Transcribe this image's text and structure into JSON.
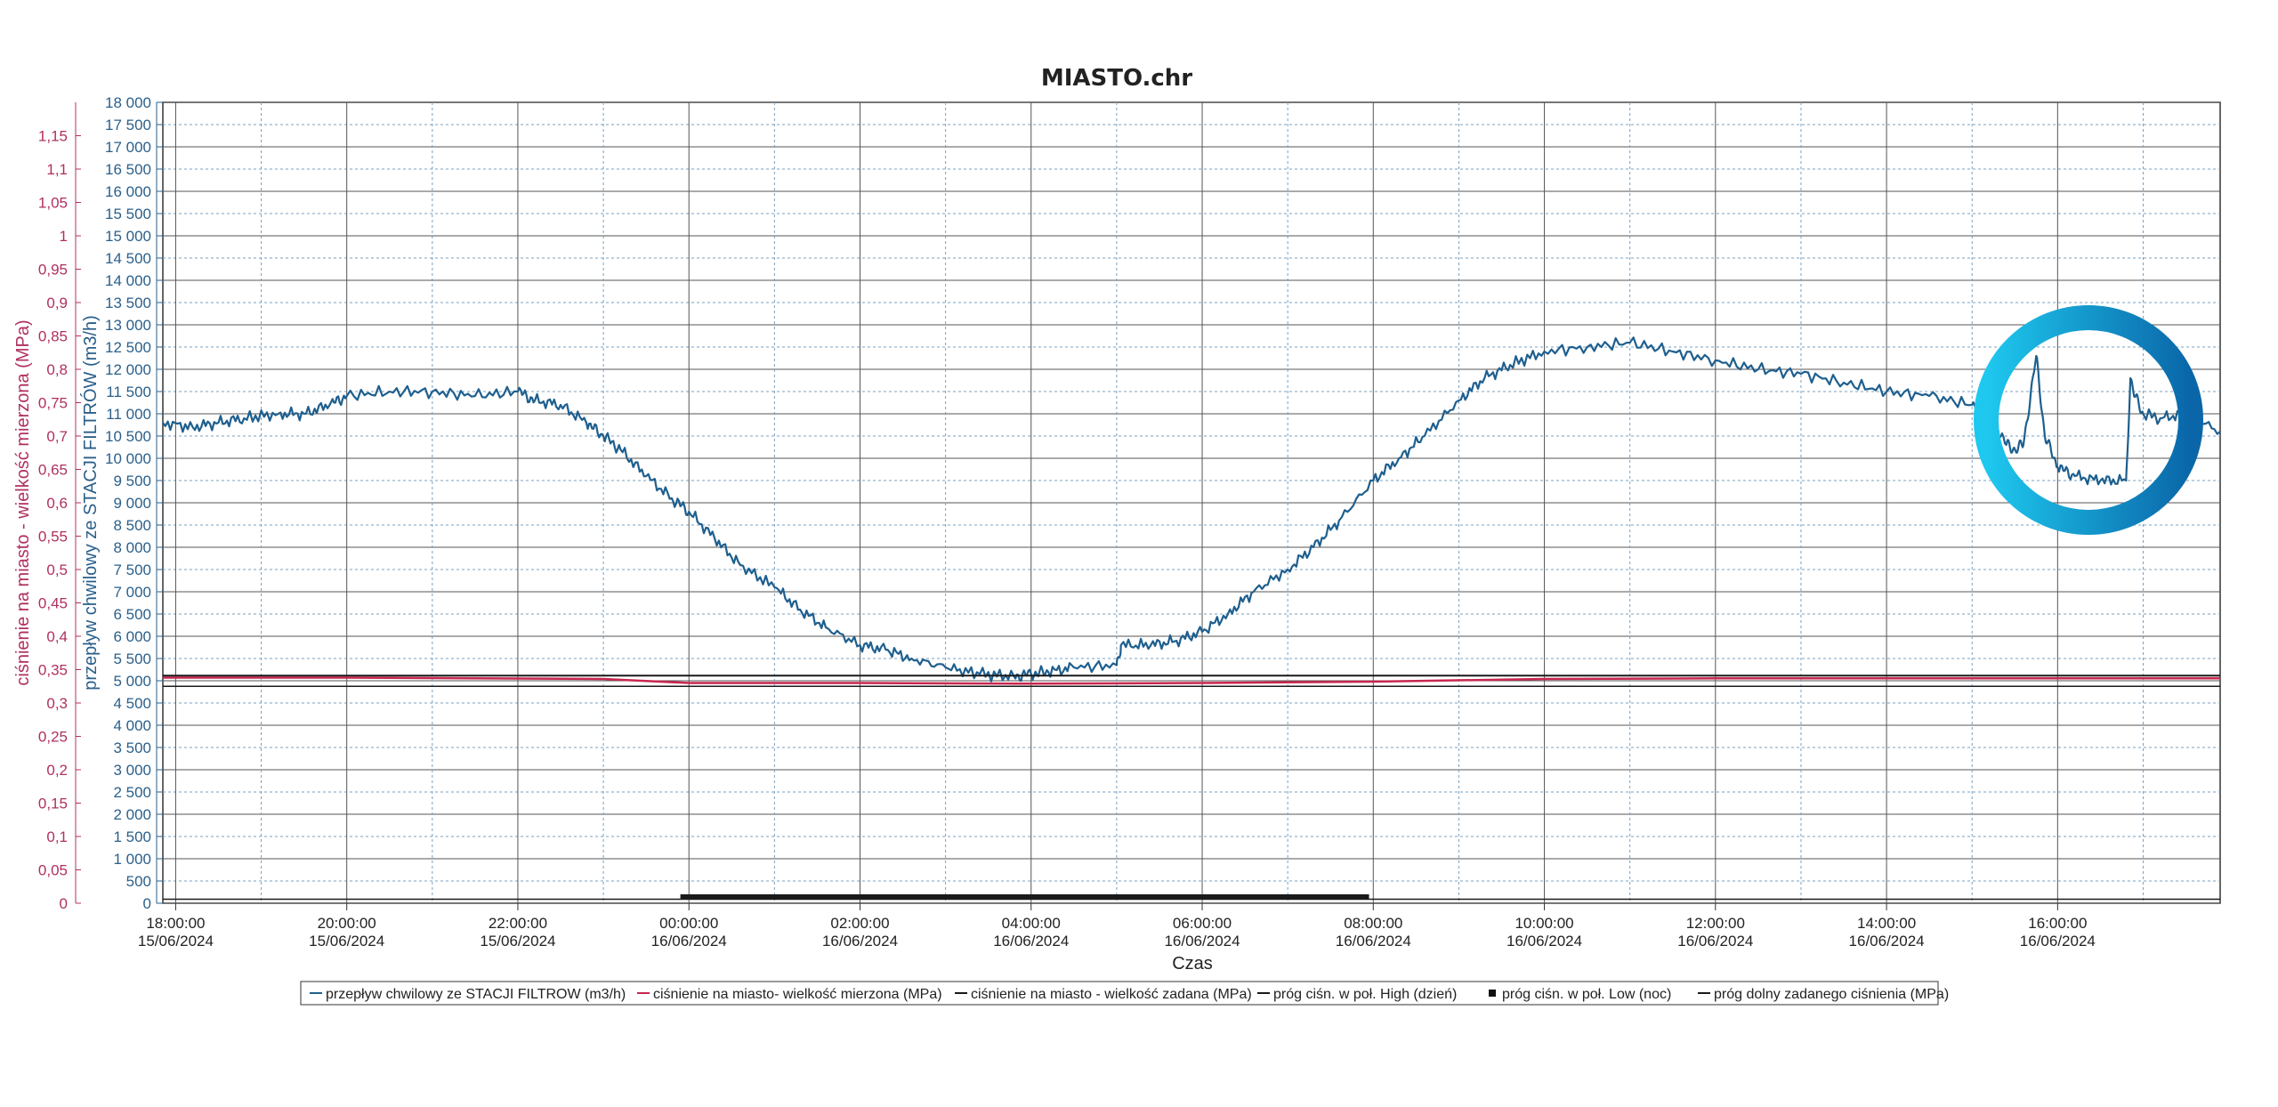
{
  "colors": {
    "flow": "#1e5f8e",
    "pressure_measured": "#c8274f",
    "pressure_set": "#1a1a1a",
    "threshold": "#1a1a1a",
    "grid_major": "#555555",
    "grid_minor": "#7aa0c0",
    "highlight_ring_outer": "#0a66a8",
    "highlight_ring_inner": "#1ec8ef"
  },
  "chart_data": {
    "type": "line",
    "title": "MIASTO.chr",
    "xlabel": "Czas",
    "ylabel_left": "ciśnienie na miasto - wielkość mierzona (MPa)",
    "ylabel_right": "przepływ chwilowy ze STACJI FILTRÓW (m3/h)",
    "xlim_hours": [
      -6.15,
      17.9
    ],
    "ylim_left": [
      0,
      1.2
    ],
    "ylim_right": [
      0,
      18000
    ],
    "x_ticks": [
      {
        "time": "18:00:00",
        "date": "15/06/2024",
        "h": -6
      },
      {
        "time": "20:00:00",
        "date": "15/06/2024",
        "h": -4
      },
      {
        "time": "22:00:00",
        "date": "15/06/2024",
        "h": -2
      },
      {
        "time": "00:00:00",
        "date": "16/06/2024",
        "h": 0
      },
      {
        "time": "02:00:00",
        "date": "16/06/2024",
        "h": 2
      },
      {
        "time": "04:00:00",
        "date": "16/06/2024",
        "h": 4
      },
      {
        "time": "06:00:00",
        "date": "16/06/2024",
        "h": 6
      },
      {
        "time": "08:00:00",
        "date": "16/06/2024",
        "h": 8
      },
      {
        "time": "10:00:00",
        "date": "16/06/2024",
        "h": 10
      },
      {
        "time": "12:00:00",
        "date": "16/06/2024",
        "h": 12
      },
      {
        "time": "14:00:00",
        "date": "16/06/2024",
        "h": 14
      },
      {
        "time": "16:00:00",
        "date": "16/06/2024",
        "h": 16
      }
    ],
    "y_ticks_left": [
      "0",
      "0,05",
      "0,1",
      "0,15",
      "0,2",
      "0,25",
      "0,3",
      "0,35",
      "0,4",
      "0,45",
      "0,5",
      "0,55",
      "0,6",
      "0,65",
      "0,7",
      "0,75",
      "0,8",
      "0,85",
      "0,9",
      "0,95",
      "1",
      "1,05",
      "1,1",
      "1,15"
    ],
    "y_ticks_right": [
      "0",
      "500",
      "1 000",
      "1 500",
      "2 000",
      "2 500",
      "3 000",
      "3 500",
      "4 000",
      "4 500",
      "5 000",
      "5 500",
      "6 000",
      "6 500",
      "7 000",
      "7 500",
      "8 000",
      "8 500",
      "9 000",
      "9 500",
      "10 000",
      "10 500",
      "11 000",
      "11 500",
      "12 000",
      "12 500",
      "13 000",
      "13 500",
      "14 000",
      "14 500",
      "15 000",
      "15 500",
      "16 000",
      "16 500",
      "17 000",
      "17 500",
      "18 000"
    ],
    "series": [
      {
        "name": "przepływ chwilowy ze STACJI FILTROW (m3/h)",
        "axis": "right",
        "x_hours": [
          -6.15,
          -5.8,
          -5.5,
          -5.2,
          -4.8,
          -4.5,
          -4.2,
          -4.0,
          -3.5,
          -3.0,
          -2.5,
          -2.0,
          -1.8,
          -1.5,
          -1.2,
          -1.0,
          -0.8,
          -0.5,
          -0.2,
          0.0,
          0.3,
          0.6,
          1.0,
          1.3,
          1.6,
          2.0,
          2.3,
          2.6,
          3.0,
          3.4,
          3.8,
          4.0,
          4.2,
          4.5,
          5.0,
          5.05,
          5.4,
          5.7,
          6.0,
          6.3,
          6.6,
          7.0,
          7.3,
          7.6,
          8.0,
          8.3,
          8.6,
          9.0,
          9.3,
          9.6,
          10.0,
          10.5,
          11.0,
          11.5,
          12.0,
          12.5,
          13.0,
          13.5,
          14.0,
          14.5,
          15.0,
          15.2,
          15.4,
          15.5,
          15.6,
          15.75,
          15.85,
          16.0,
          16.2,
          16.5,
          16.8,
          16.85,
          16.9,
          17.0,
          17.2,
          17.5,
          17.9
        ],
        "values": [
          10800,
          10700,
          10800,
          10900,
          11000,
          11000,
          11200,
          11400,
          11500,
          11500,
          11400,
          11500,
          11300,
          11200,
          10800,
          10500,
          10200,
          9600,
          9100,
          8800,
          8200,
          7600,
          7100,
          6600,
          6200,
          5800,
          5700,
          5500,
          5300,
          5150,
          5100,
          5150,
          5200,
          5300,
          5350,
          5800,
          5800,
          5900,
          6100,
          6500,
          7000,
          7500,
          8000,
          8600,
          9500,
          10000,
          10500,
          11300,
          11800,
          12100,
          12400,
          12500,
          12600,
          12400,
          12200,
          12000,
          11900,
          11700,
          11500,
          11400,
          11200,
          11100,
          10300,
          10200,
          10300,
          12300,
          10500,
          9800,
          9600,
          9500,
          9500,
          11800,
          11400,
          11000,
          10900,
          11000,
          10600
        ]
      },
      {
        "name": "ciśnienie na miasto- wielkość mierzona (MPa)",
        "axis": "left",
        "x_hours": [
          -6.15,
          -4,
          -1,
          0,
          2,
          4,
          6,
          8,
          10,
          12,
          14,
          16,
          17.9
        ],
        "values": [
          0.338,
          0.338,
          0.336,
          0.33,
          0.33,
          0.329,
          0.33,
          0.332,
          0.336,
          0.337,
          0.337,
          0.337,
          0.337
        ]
      },
      {
        "name": "ciśnienie na miasto - wielkość zadana (MPa)",
        "axis": "left",
        "x_hours": [
          -6.15,
          17.9
        ],
        "values": [
          0.341,
          0.341
        ]
      },
      {
        "name": "próg ciśn. w poł. High (dzień)",
        "axis": "left",
        "x_hours": [
          -6.15,
          17.9
        ],
        "values": [
          0.325,
          0.325
        ]
      },
      {
        "name": "próg ciśn. w poł. Low (noc)",
        "axis": "left",
        "x_hours": [
          -0.1,
          7.95
        ],
        "values": [
          0.01,
          0.01
        ]
      },
      {
        "name": "próg dolny zadanego ciśnienia (MPa)",
        "axis": "left",
        "x_hours": [
          -6.15,
          17.9
        ],
        "values": [
          0.006,
          0.006
        ]
      }
    ],
    "grid": true,
    "legend_position": "bottom",
    "annotation": "circle highlighting flow drops around 15:30–17:30"
  }
}
